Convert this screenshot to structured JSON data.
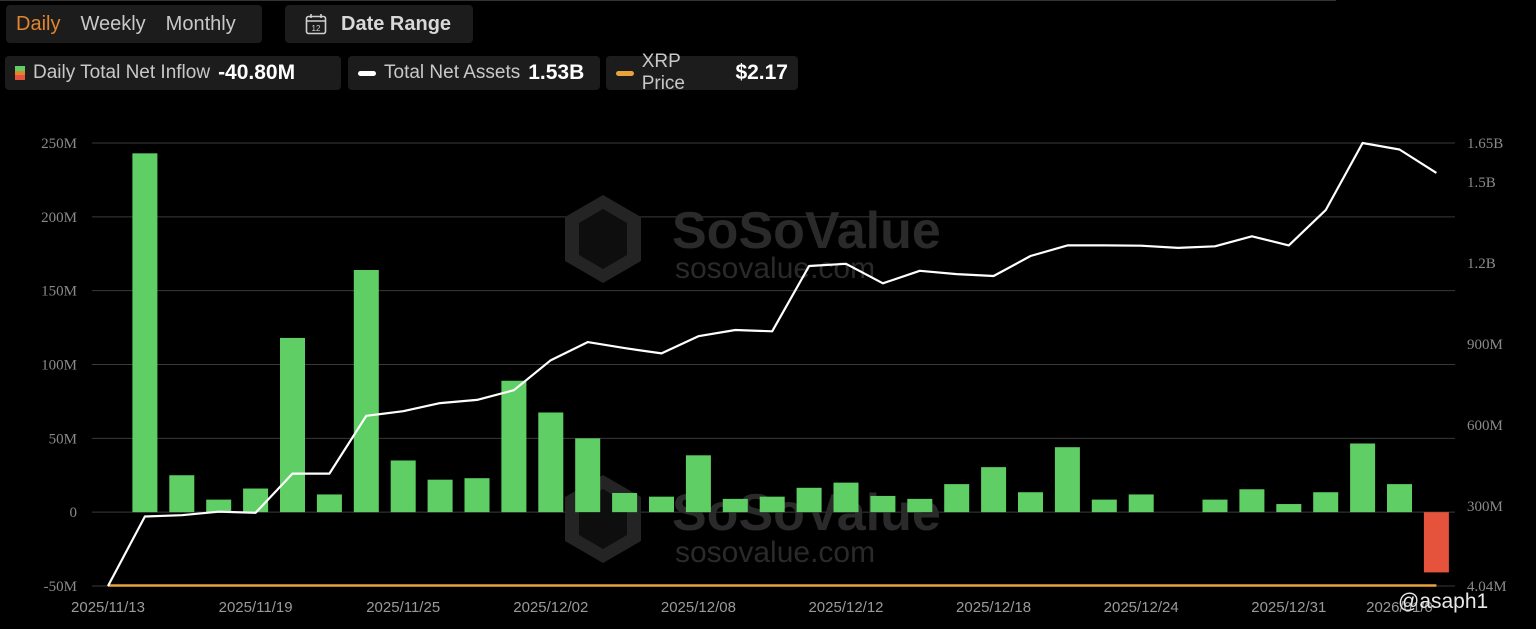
{
  "tabs": [
    {
      "label": "Daily",
      "active": true
    },
    {
      "label": "Weekly",
      "active": false
    },
    {
      "label": "Monthly",
      "active": false
    }
  ],
  "date_range": {
    "label": "Date Range",
    "icon": "calendar-icon",
    "icon_text": "12"
  },
  "legend": [
    {
      "name": "Daily Total Net Inflow",
      "value": "-40.80M",
      "colors": [
        "#5fcf65",
        "#e0852f",
        "#e5533d"
      ]
    },
    {
      "name": "Total Net Assets",
      "value": "1.53B",
      "color": "#ffffff"
    },
    {
      "name": "XRP Price",
      "value": "$2.17",
      "color": "#e8a33a"
    }
  ],
  "watermark": {
    "brand": "SoSoValue",
    "url": "sosovalue.com"
  },
  "credit": "@asaph1",
  "chart_data": {
    "type": "bar",
    "colors": {
      "positive": "#5fcf65",
      "negative": "#e5533d",
      "assets_line": "#ffffff",
      "price_line": "#e8a33a",
      "grid": "#3a3a3a"
    },
    "left_axis": {
      "min": -50,
      "max": 250,
      "ticks": [
        250,
        200,
        150,
        100,
        50,
        0,
        -50
      ],
      "tick_labels": [
        "250M",
        "200M",
        "150M",
        "100M",
        "50M",
        "0",
        "-50M"
      ]
    },
    "right_axis": {
      "tick_labels": [
        "1.65B",
        "1.5B",
        "1.2B",
        "900M",
        "600M",
        "300M",
        "4.04M"
      ]
    },
    "x_tick_labels": [
      {
        "index": 0,
        "label": "2025/11/13"
      },
      {
        "index": 4,
        "label": "2025/11/19"
      },
      {
        "index": 8,
        "label": "2025/11/25"
      },
      {
        "index": 12,
        "label": "2025/12/02"
      },
      {
        "index": 16,
        "label": "2025/12/08"
      },
      {
        "index": 20,
        "label": "2025/12/12"
      },
      {
        "index": 24,
        "label": "2025/12/18"
      },
      {
        "index": 28,
        "label": "2025/12/24"
      },
      {
        "index": 32,
        "label": "2025/12/31"
      },
      {
        "index": 35,
        "label": "2026/01/0"
      }
    ],
    "inflow_m": [
      0,
      243,
      25,
      8.5,
      16,
      118,
      12,
      164,
      35,
      22,
      23,
      89,
      67.5,
      50,
      13,
      10.5,
      38.5,
      9,
      10.5,
      16.5,
      20,
      11,
      9,
      19,
      30.5,
      13.5,
      44,
      8.5,
      12,
      0,
      8.5,
      15.5,
      5.5,
      13.5,
      46.5,
      19,
      -40.8
    ],
    "net_assets": [
      4.04,
      261,
      266,
      279,
      275,
      420,
      420,
      634,
      651,
      681,
      693,
      729,
      840,
      907,
      885,
      865,
      929,
      952,
      947,
      1189,
      1197,
      1125,
      1171,
      1159,
      1152,
      1226,
      1265,
      1265,
      1264,
      1256,
      1262,
      1299,
      1265,
      1396,
      1653,
      1625,
      1535
    ],
    "xrp_price": [
      2.17
    ]
  }
}
